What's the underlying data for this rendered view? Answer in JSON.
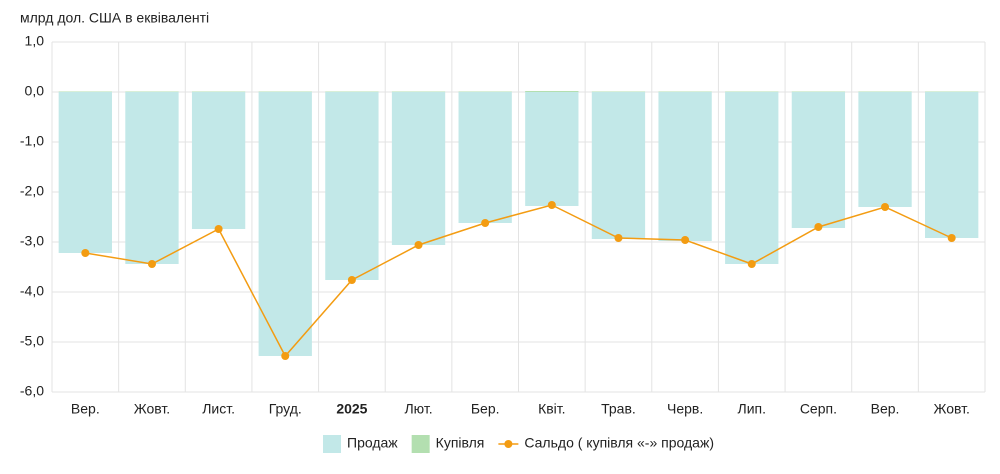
{
  "chart_data": {
    "type": "bar-line",
    "y_label": "млрд дол. США в еквіваленті",
    "categories": [
      "Вер.",
      "Жовт.",
      "Лист.",
      "Груд.",
      "2025",
      "Лют.",
      "Бер.",
      "Квіт.",
      "Трав.",
      "Черв.",
      "Лип.",
      "Серп.",
      "Вер.",
      "Жовт."
    ],
    "series": [
      {
        "name": "Продаж",
        "type": "bar",
        "color": "#c2e8e8",
        "values": [
          -3.22,
          -3.44,
          -2.74,
          -5.28,
          -3.76,
          -3.06,
          -2.62,
          -2.28,
          -2.94,
          -2.98,
          -3.44,
          -2.72,
          -2.3,
          -2.92
        ]
      },
      {
        "name": "Купівля",
        "type": "bar",
        "color": "#b3dfb0",
        "values": [
          0.01,
          0.01,
          0.01,
          0.01,
          0.01,
          0.01,
          0.01,
          0.02,
          0.01,
          0.01,
          0.01,
          0.01,
          0.01,
          0.01
        ]
      },
      {
        "name": "Сальдо ( купівля «-» продаж)",
        "type": "line",
        "color": "#f39c12",
        "values": [
          -3.22,
          -3.44,
          -2.74,
          -5.28,
          -3.76,
          -3.06,
          -2.62,
          -2.26,
          -2.92,
          -2.96,
          -3.44,
          -2.7,
          -2.3,
          -2.92
        ]
      }
    ],
    "ylim": [
      -6,
      1
    ],
    "yticks": [
      {
        "value": 1,
        "label": "1,0"
      },
      {
        "value": 0,
        "label": "0,0"
      },
      {
        "value": -1,
        "label": "-1,0"
      },
      {
        "value": -2,
        "label": "-2,0"
      },
      {
        "value": -3,
        "label": "-3,0"
      },
      {
        "value": -4,
        "label": "-4,0"
      },
      {
        "value": -5,
        "label": "-5,0"
      },
      {
        "value": -6,
        "label": "-6,0"
      }
    ],
    "grid": true
  }
}
